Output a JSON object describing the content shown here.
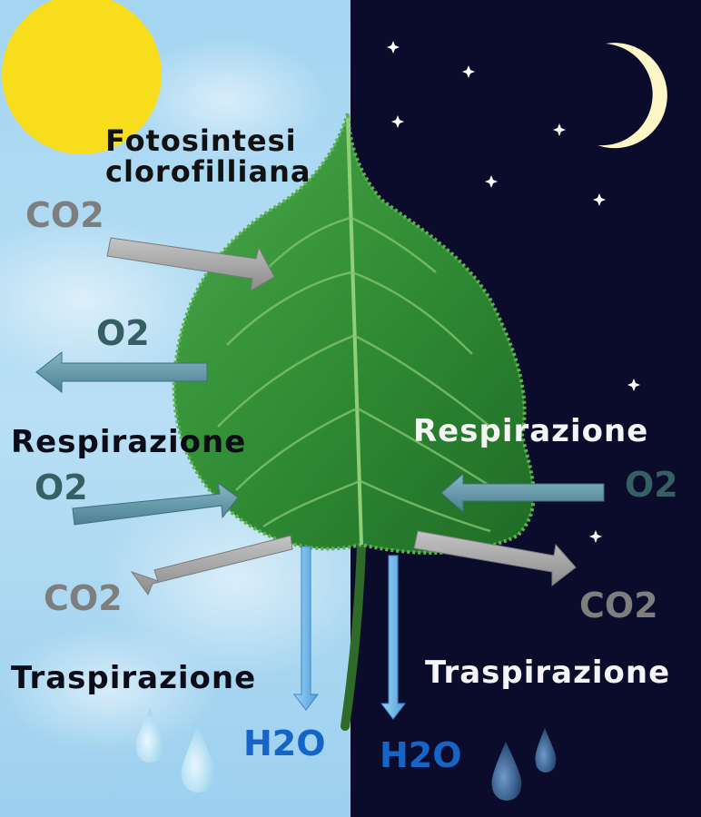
{
  "day": {
    "title_line1": "Fotosintesi",
    "title_line2": "clorofilliana",
    "photo_co2": "CO2",
    "photo_o2": "O2",
    "respiration": "Respirazione",
    "resp_o2": "O2",
    "resp_co2": "CO2",
    "transpiration": "Traspirazione",
    "water": "H2O"
  },
  "night": {
    "respiration": "Respirazione",
    "resp_o2": "O2",
    "resp_co2": "CO2",
    "transpiration": "Traspirazione",
    "water": "H2O"
  },
  "colors": {
    "day_sky": "#a6d4f0",
    "night_sky": "#0b0c2b",
    "sun": "#f7dd1c",
    "moon": "#fdf7c8",
    "leaf": "#3c9a3a",
    "co2_arrow": "#a0a0a0",
    "o2_arrow": "#5f93a4",
    "h2o_arrow": "#62aee4"
  },
  "icons": [
    "sun-icon",
    "moon-icon",
    "star-icon",
    "leaf-icon",
    "water-drop-icon",
    "arrow-icon"
  ]
}
